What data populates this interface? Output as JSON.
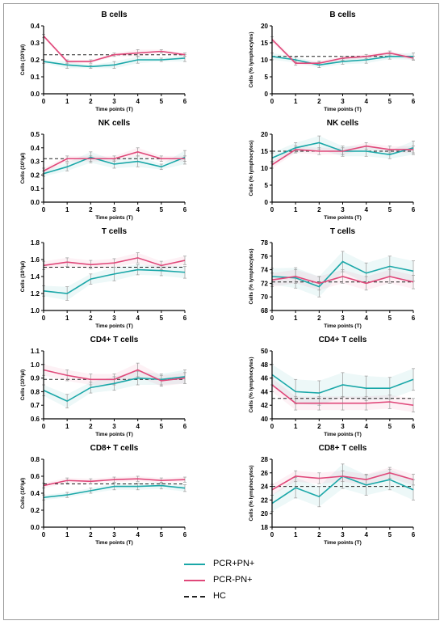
{
  "colors": {
    "pcr_plus": "#1aa7a8",
    "pcr_minus": "#e0487a",
    "hc": "#222222",
    "axis": "#000000",
    "err": "#999999"
  },
  "legend": {
    "items": [
      {
        "label": "PCR+PN+",
        "color": "#1aa7a8",
        "style": "solid"
      },
      {
        "label": "PCR-PN+",
        "color": "#e0487a",
        "style": "solid"
      },
      {
        "label": "HC",
        "color": "#222222",
        "style": "dashed"
      }
    ]
  },
  "chart_data": [
    {
      "type": "line",
      "title": "B cells",
      "xlabel": "Time points (T)",
      "ylabel": "Cells (10³/µl)",
      "x": [
        0,
        1,
        2,
        3,
        4,
        5,
        6
      ],
      "ylim": [
        0.0,
        0.4
      ],
      "yticks": [
        "0.0",
        "0.1",
        "0.2",
        "0.3",
        "0.4"
      ],
      "hc": 0.23,
      "series": [
        {
          "name": "PCR+PN+",
          "values": [
            0.19,
            0.17,
            0.16,
            0.17,
            0.2,
            0.2,
            0.21
          ],
          "err": [
            0.01,
            0.02,
            0.01,
            0.02,
            0.02,
            0.01,
            0.02
          ]
        },
        {
          "name": "PCR-PN+",
          "values": [
            0.34,
            0.19,
            0.19,
            0.23,
            0.24,
            0.25,
            0.23
          ],
          "err": [
            0.01,
            0.01,
            0.01,
            0.01,
            0.02,
            0.01,
            0.01
          ]
        }
      ]
    },
    {
      "type": "line",
      "title": "B cells",
      "xlabel": "Time points (T)",
      "ylabel": "Cells (% lymphocytes)",
      "x": [
        0,
        1,
        2,
        3,
        4,
        5,
        6
      ],
      "ylim": [
        0,
        20
      ],
      "yticks": [
        "0",
        "5",
        "10",
        "15",
        "20"
      ],
      "hc": 11,
      "series": [
        {
          "name": "PCR+PN+",
          "values": [
            11,
            10,
            8.5,
            9.5,
            10,
            11,
            11
          ],
          "err": [
            1,
            0.8,
            0.8,
            0.8,
            1,
            0.8,
            1
          ]
        },
        {
          "name": "PCR-PN+",
          "values": [
            16,
            9,
            9,
            10.5,
            11,
            12,
            10.5
          ],
          "err": [
            0.8,
            0.6,
            0.6,
            0.6,
            0.6,
            0.6,
            0.6
          ]
        }
      ]
    },
    {
      "type": "line",
      "title": "NK cells",
      "xlabel": "Time points (T)",
      "ylabel": "Cells (10³/µl)",
      "x": [
        0,
        1,
        2,
        3,
        4,
        5,
        6
      ],
      "ylim": [
        0.0,
        0.5
      ],
      "yticks": [
        "0.0",
        "0.1",
        "0.2",
        "0.3",
        "0.4",
        "0.5"
      ],
      "hc": 0.32,
      "series": [
        {
          "name": "PCR+PN+",
          "values": [
            0.21,
            0.26,
            0.33,
            0.28,
            0.3,
            0.26,
            0.33
          ],
          "err": [
            0.02,
            0.03,
            0.04,
            0.03,
            0.04,
            0.02,
            0.05
          ]
        },
        {
          "name": "PCR-PN+",
          "values": [
            0.23,
            0.32,
            0.32,
            0.32,
            0.37,
            0.32,
            0.32
          ],
          "err": [
            0.02,
            0.02,
            0.02,
            0.02,
            0.03,
            0.02,
            0.02
          ]
        }
      ]
    },
    {
      "type": "line",
      "title": "NK cells",
      "xlabel": "Time points (T)",
      "ylabel": "Cells (% lymphocytes)",
      "x": [
        0,
        1,
        2,
        3,
        4,
        5,
        6
      ],
      "ylim": [
        0,
        20
      ],
      "yticks": [
        "0",
        "5",
        "10",
        "15",
        "20"
      ],
      "hc": 15,
      "series": [
        {
          "name": "PCR+PN+",
          "values": [
            13,
            16,
            17.5,
            15,
            15,
            14,
            16
          ],
          "err": [
            1.5,
            1.5,
            2,
            1.5,
            1.5,
            1.2,
            2
          ]
        },
        {
          "name": "PCR-PN+",
          "values": [
            11,
            15.5,
            15,
            15,
            16.5,
            15.5,
            15.5
          ],
          "err": [
            1,
            1,
            1,
            1,
            1,
            1,
            1
          ]
        }
      ]
    },
    {
      "type": "line",
      "title": "T cells",
      "xlabel": "Time points (T)",
      "ylabel": "Cells (10³/µl)",
      "x": [
        0,
        1,
        2,
        3,
        4,
        5,
        6
      ],
      "ylim": [
        1.0,
        1.8
      ],
      "yticks": [
        "1.0",
        "1.2",
        "1.4",
        "1.6",
        "1.8"
      ],
      "hc": 1.51,
      "series": [
        {
          "name": "PCR+PN+",
          "values": [
            1.23,
            1.2,
            1.37,
            1.43,
            1.48,
            1.47,
            1.45
          ],
          "err": [
            0.06,
            0.08,
            0.06,
            0.08,
            0.06,
            0.06,
            0.07
          ]
        },
        {
          "name": "PCR-PN+",
          "values": [
            1.53,
            1.57,
            1.54,
            1.56,
            1.62,
            1.53,
            1.59
          ],
          "err": [
            0.05,
            0.05,
            0.05,
            0.05,
            0.06,
            0.05,
            0.05
          ]
        }
      ]
    },
    {
      "type": "line",
      "title": "T cells",
      "xlabel": "Time points (T)",
      "ylabel": "Cells (% lymphocytes)",
      "x": [
        0,
        1,
        2,
        3,
        4,
        5,
        6
      ],
      "ylim": [
        68,
        78
      ],
      "yticks": [
        "68",
        "70",
        "72",
        "74",
        "76",
        "78"
      ],
      "hc": 72.2,
      "series": [
        {
          "name": "PCR+PN+",
          "values": [
            73.0,
            72.8,
            71.5,
            75.2,
            73.5,
            74.5,
            73.8
          ],
          "err": [
            1.2,
            1.5,
            1.5,
            1.5,
            1.5,
            1.5,
            1.5
          ]
        },
        {
          "name": "PCR-PN+",
          "values": [
            72.5,
            73.0,
            72.0,
            73.0,
            72.0,
            73.0,
            72.2
          ],
          "err": [
            1,
            1,
            1,
            1,
            1,
            1,
            1
          ]
        }
      ]
    },
    {
      "type": "line",
      "title": "CD4+ T cells",
      "xlabel": "Time points (T)",
      "ylabel": "Cells (10³/µl)",
      "x": [
        0,
        1,
        2,
        3,
        4,
        5,
        6
      ],
      "ylim": [
        0.6,
        1.1
      ],
      "yticks": [
        "0.6",
        "0.7",
        "0.8",
        "0.9",
        "1.0",
        "1.1"
      ],
      "hc": 0.89,
      "series": [
        {
          "name": "PCR+PN+",
          "values": [
            0.81,
            0.73,
            0.83,
            0.86,
            0.9,
            0.89,
            0.91
          ],
          "err": [
            0.04,
            0.05,
            0.04,
            0.05,
            0.05,
            0.04,
            0.05
          ]
        },
        {
          "name": "PCR-PN+",
          "values": [
            0.96,
            0.92,
            0.89,
            0.89,
            0.96,
            0.88,
            0.9
          ],
          "err": [
            0.04,
            0.04,
            0.04,
            0.04,
            0.05,
            0.04,
            0.04
          ]
        }
      ]
    },
    {
      "type": "line",
      "title": "CD4+ T cells",
      "xlabel": "Time points (T)",
      "ylabel": "Cells (% lymphocytes)",
      "x": [
        0,
        1,
        2,
        3,
        4,
        5,
        6
      ],
      "ylim": [
        40,
        50
      ],
      "yticks": [
        "40",
        "42",
        "44",
        "46",
        "48",
        "50"
      ],
      "hc": 43,
      "series": [
        {
          "name": "PCR+PN+",
          "values": [
            46.5,
            44.0,
            43.8,
            45.0,
            44.5,
            44.5,
            45.8
          ],
          "err": [
            1.5,
            1.8,
            1.8,
            1.8,
            1.8,
            1.6,
            1.6
          ]
        },
        {
          "name": "PCR-PN+",
          "values": [
            45.0,
            42.3,
            42.3,
            42.3,
            42.3,
            42.5,
            42.0
          ],
          "err": [
            1,
            1,
            1,
            1,
            1,
            1,
            1
          ]
        }
      ]
    },
    {
      "type": "line",
      "title": "CD8+ T cells",
      "xlabel": "Time points (T)",
      "ylabel": "Cells (10³/µl)",
      "x": [
        0,
        1,
        2,
        3,
        4,
        5,
        6
      ],
      "ylim": [
        0.0,
        0.8
      ],
      "yticks": [
        "0.0",
        "0.2",
        "0.4",
        "0.6",
        "0.8"
      ],
      "hc": 0.51,
      "series": [
        {
          "name": "PCR+PN+",
          "values": [
            0.35,
            0.38,
            0.43,
            0.48,
            0.48,
            0.49,
            0.46
          ],
          "err": [
            0.03,
            0.03,
            0.03,
            0.04,
            0.04,
            0.04,
            0.04
          ]
        },
        {
          "name": "PCR-PN+",
          "values": [
            0.49,
            0.55,
            0.54,
            0.56,
            0.57,
            0.55,
            0.56
          ],
          "err": [
            0.03,
            0.03,
            0.03,
            0.03,
            0.03,
            0.03,
            0.03
          ]
        }
      ]
    },
    {
      "type": "line",
      "title": "CD8+ T cells",
      "xlabel": "Time points (T)",
      "ylabel": "Cells (% lymphocytes)",
      "x": [
        0,
        1,
        2,
        3,
        4,
        5,
        6
      ],
      "ylim": [
        18,
        28
      ],
      "yticks": [
        "18",
        "20",
        "22",
        "24",
        "26",
        "28"
      ],
      "hc": 24,
      "series": [
        {
          "name": "PCR+PN+",
          "values": [
            21.5,
            23.8,
            22.5,
            25.5,
            24.2,
            25.0,
            23.5
          ],
          "err": [
            1.2,
            1.5,
            1.5,
            1.8,
            1.5,
            1.5,
            1.5
          ]
        },
        {
          "name": "PCR-PN+",
          "values": [
            23.5,
            25.5,
            25.2,
            25.5,
            25.0,
            26.0,
            25.0
          ],
          "err": [
            0.8,
            0.8,
            0.8,
            0.8,
            0.8,
            0.8,
            0.8
          ]
        }
      ]
    }
  ]
}
